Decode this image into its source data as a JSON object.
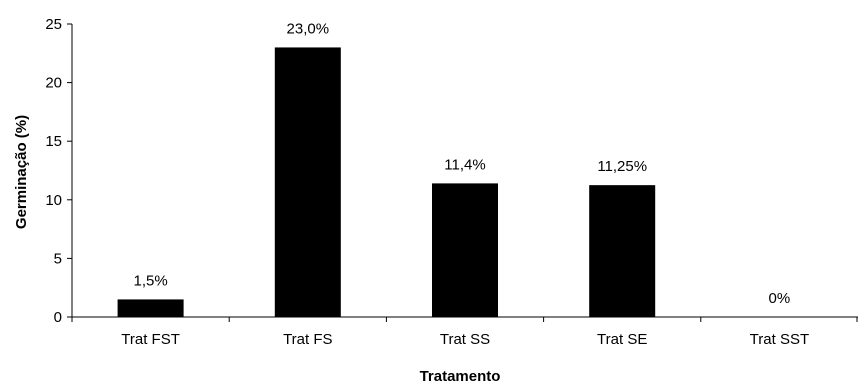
{
  "chart_data": {
    "type": "bar",
    "categories": [
      "Trat FST",
      "Trat FS",
      "Trat SS",
      "Trat SE",
      "Trat SST"
    ],
    "values": [
      1.5,
      23.0,
      11.4,
      11.25,
      0
    ],
    "data_labels": [
      "1,5%",
      "23,0%",
      "11,4%",
      "11,25%",
      "0%"
    ],
    "xlabel": "Tratamento",
    "ylabel": "Germinação (%)",
    "ylim": [
      0,
      25
    ],
    "yticks": [
      0,
      5,
      10,
      15,
      20,
      25
    ],
    "grid": false,
    "legend": "none",
    "bar_color": "#000000"
  }
}
